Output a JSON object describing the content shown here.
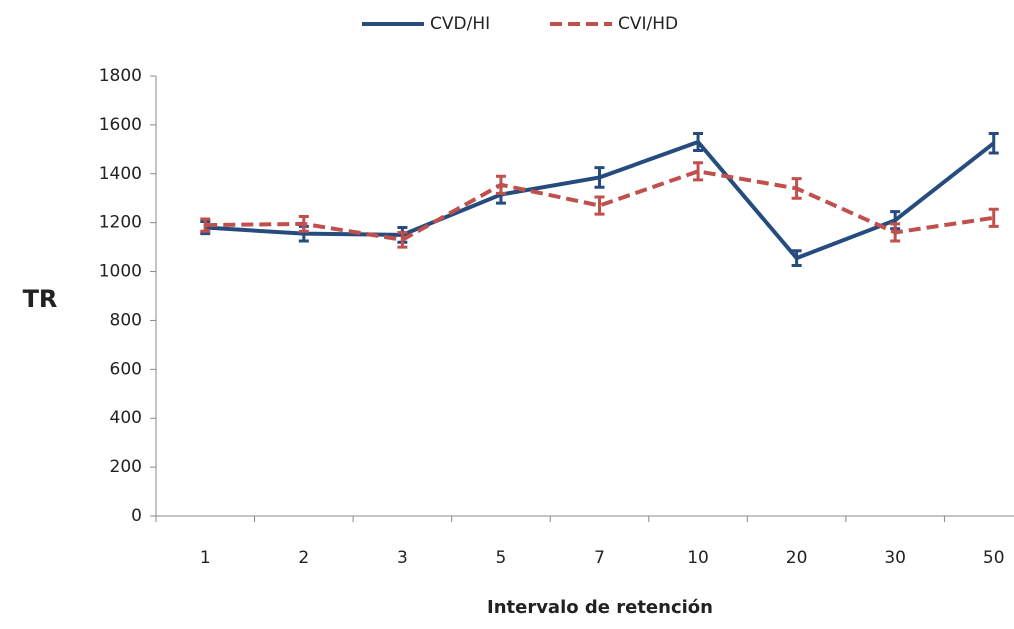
{
  "chart_data": {
    "type": "line",
    "xlabel": "Intervalo de retención",
    "ylabel": "TR",
    "categories": [
      "1",
      "2",
      "3",
      "5",
      "7",
      "10",
      "20",
      "30",
      "50"
    ],
    "series": [
      {
        "name": "CVD/HI",
        "color": "#264c7e",
        "dash": false,
        "values": [
          1180,
          1155,
          1150,
          1315,
          1385,
          1530,
          1055,
          1210,
          1525
        ],
        "errors": [
          25,
          30,
          30,
          35,
          40,
          35,
          30,
          35,
          40
        ]
      },
      {
        "name": "CVI/HD",
        "color": "#c0504d",
        "dash": true,
        "values": [
          1190,
          1195,
          1130,
          1355,
          1270,
          1410,
          1340,
          1160,
          1220
        ],
        "errors": [
          25,
          30,
          30,
          35,
          35,
          35,
          40,
          35,
          35
        ]
      }
    ],
    "ylim": [
      0,
      1800
    ],
    "yticks": [
      0,
      200,
      400,
      600,
      800,
      1000,
      1200,
      1400,
      1600,
      1800
    ],
    "grid": false,
    "legend": "top"
  }
}
